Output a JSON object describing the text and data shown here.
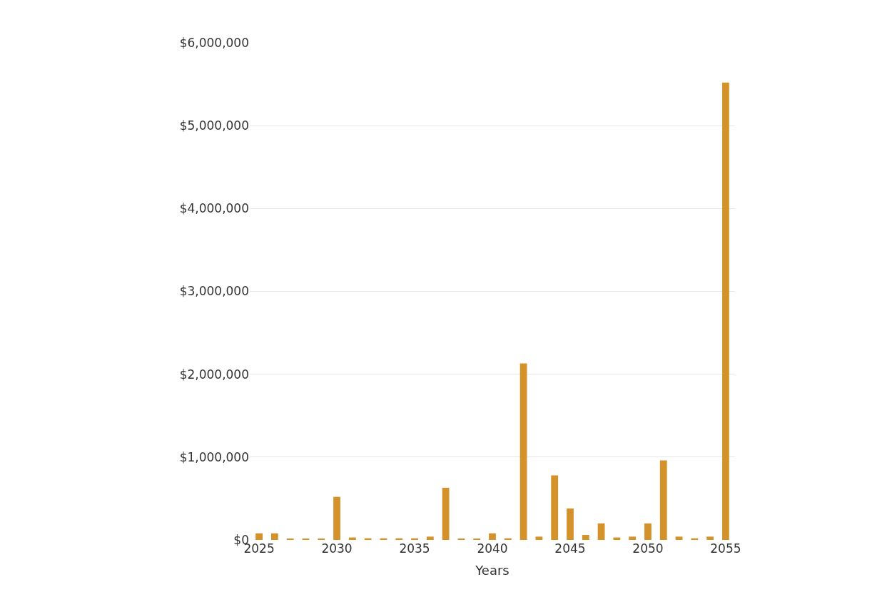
{
  "chart_data": {
    "type": "bar",
    "xlabel": "Years",
    "x": [
      2025,
      2026,
      2027,
      2028,
      2029,
      2030,
      2031,
      2032,
      2033,
      2034,
      2035,
      2036,
      2037,
      2038,
      2039,
      2040,
      2041,
      2042,
      2043,
      2044,
      2045,
      2046,
      2047,
      2048,
      2049,
      2050,
      2051,
      2052,
      2053,
      2054,
      2055
    ],
    "values": [
      80000,
      80000,
      10000,
      10000,
      10000,
      520000,
      30000,
      20000,
      20000,
      20000,
      20000,
      40000,
      630000,
      10000,
      10000,
      80000,
      20000,
      2130000,
      40000,
      780000,
      380000,
      60000,
      200000,
      30000,
      40000,
      200000,
      960000,
      40000,
      20000,
      40000,
      5520000
    ],
    "color": "#d4922a",
    "xlim": [
      2024.4,
      2055.6
    ],
    "xticks": [
      2025,
      2030,
      2035,
      2040,
      2045,
      2050,
      2055
    ],
    "ylim": [
      0,
      6000000
    ],
    "yticks": [
      {
        "value": 0,
        "label": "$0"
      },
      {
        "value": 1000000,
        "label": "$1,000,000"
      },
      {
        "value": 2000000,
        "label": "$2,000,000"
      },
      {
        "value": 3000000,
        "label": "$3,000,000"
      },
      {
        "value": 4000000,
        "label": "$4,000,000"
      },
      {
        "value": 5000000,
        "label": "$5,000,000"
      },
      {
        "value": 6000000,
        "label": "$6,000,000"
      }
    ],
    "grid": "y"
  }
}
